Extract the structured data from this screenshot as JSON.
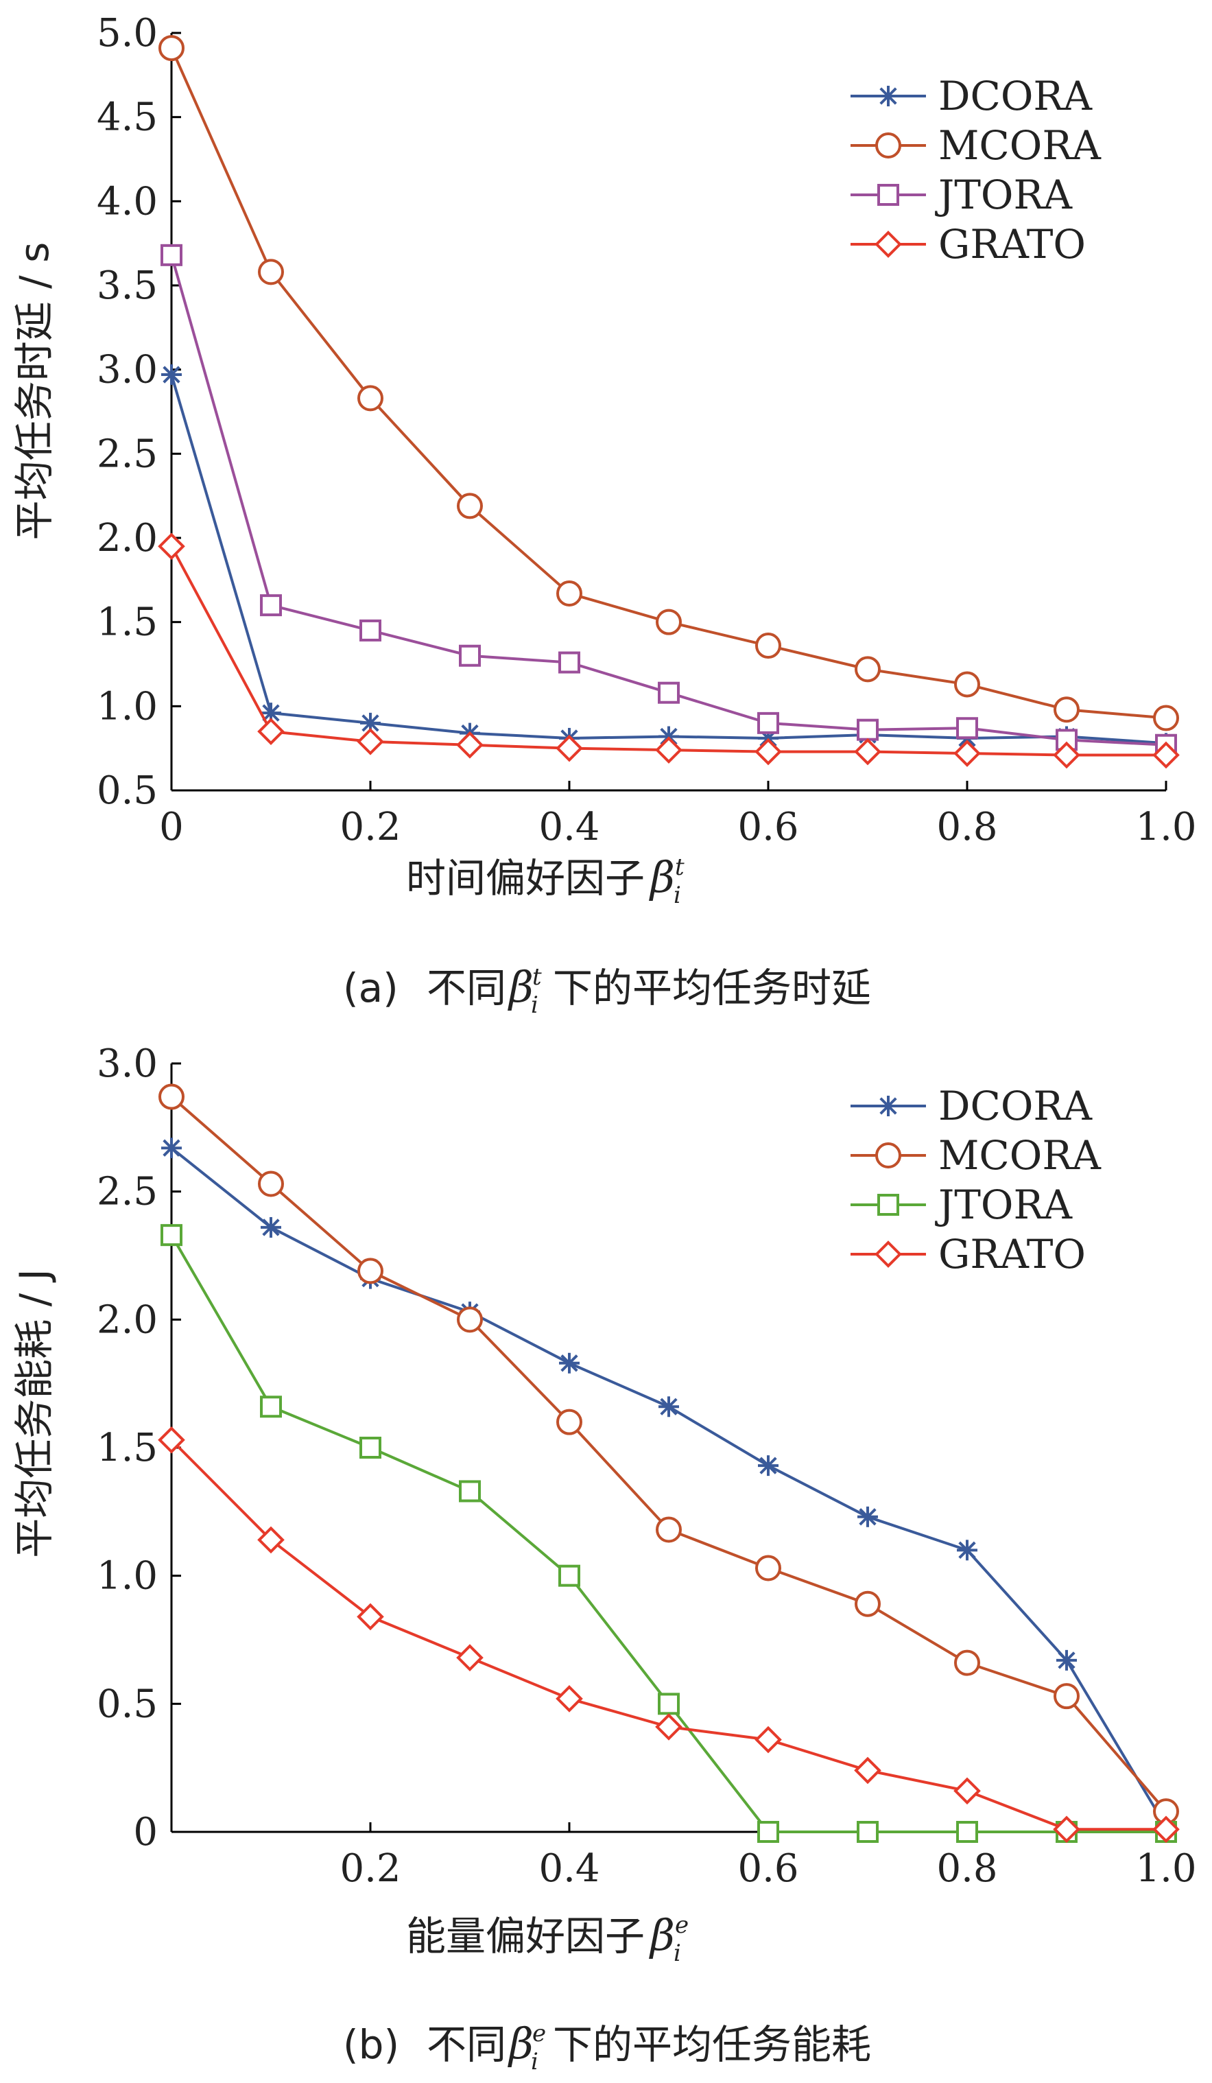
{
  "chart_data": [
    {
      "type": "line",
      "ylabel": "平均任务时延 / s",
      "xlabel": "时间偏好因子",
      "xlabel_symbol": "β",
      "xlabel_sub": "i",
      "xlabel_sup": "t",
      "caption_prefix": "(a)",
      "caption_pre": "不同",
      "caption_post": "下的平均任务时延",
      "caption_symbol": "β",
      "caption_sub": "i",
      "caption_sup": "t",
      "x": [
        0,
        0.1,
        0.2,
        0.3,
        0.4,
        0.5,
        0.6,
        0.7,
        0.8,
        0.9,
        1.0
      ],
      "xlim": [
        0,
        1.0
      ],
      "ylim": [
        0.5,
        5.0
      ],
      "xticks": [
        0,
        0.2,
        0.4,
        0.6,
        0.8,
        1.0
      ],
      "xtick_labels": [
        "0",
        "0.2",
        "0.4",
        "0.6",
        "0.8",
        "1.0"
      ],
      "yticks": [
        0.5,
        1.0,
        1.5,
        2.0,
        2.5,
        3.0,
        3.5,
        4.0,
        4.5,
        5.0
      ],
      "ytick_labels": [
        "0.5",
        "1.0",
        "1.5",
        "2.0",
        "2.5",
        "3.0",
        "3.5",
        "4.0",
        "4.5",
        "5.0"
      ],
      "legend_position": "top-right",
      "grid": false,
      "series": [
        {
          "name": "DCORA",
          "color": "#3a5a9a",
          "marker": "asterisk",
          "values": [
            2.97,
            0.96,
            0.9,
            0.84,
            0.81,
            0.82,
            0.81,
            0.83,
            0.81,
            0.82,
            0.78
          ]
        },
        {
          "name": "MCORA",
          "color": "#c0502a",
          "marker": "circle",
          "values": [
            4.91,
            3.58,
            2.83,
            2.19,
            1.67,
            1.5,
            1.36,
            1.22,
            1.13,
            0.98,
            0.93
          ]
        },
        {
          "name": "JTORA",
          "color": "#9b4f9a",
          "marker": "square",
          "values": [
            3.68,
            1.6,
            1.45,
            1.3,
            1.26,
            1.08,
            0.9,
            0.86,
            0.87,
            0.8,
            0.77
          ]
        },
        {
          "name": "GRATO",
          "color": "#e63a2a",
          "marker": "diamond",
          "values": [
            1.95,
            0.85,
            0.79,
            0.77,
            0.75,
            0.74,
            0.73,
            0.73,
            0.72,
            0.71,
            0.71
          ]
        }
      ]
    },
    {
      "type": "line",
      "ylabel": "平均任务能耗 / J",
      "xlabel": "能量偏好因子",
      "xlabel_symbol": "β",
      "xlabel_sub": "i",
      "xlabel_sup": "e",
      "caption_prefix": "(b)",
      "caption_pre": "不同",
      "caption_post": "下的平均任务能耗",
      "caption_symbol": "β",
      "caption_sub": "i",
      "caption_sup": "e",
      "x": [
        0,
        0.1,
        0.2,
        0.3,
        0.4,
        0.5,
        0.6,
        0.7,
        0.8,
        0.9,
        1.0
      ],
      "xlim": [
        0,
        1.0
      ],
      "ylim": [
        0,
        3.0
      ],
      "xticks": [
        0.2,
        0.4,
        0.6,
        0.8,
        1.0
      ],
      "xtick_labels": [
        "0.2",
        "0.4",
        "0.6",
        "0.8",
        "1.0"
      ],
      "yticks": [
        0,
        0.5,
        1.0,
        1.5,
        2.0,
        2.5,
        3.0
      ],
      "ytick_labels": [
        "0",
        "0.5",
        "1.0",
        "1.5",
        "2.0",
        "2.5",
        "3.0"
      ],
      "legend_position": "top-right",
      "grid": false,
      "series": [
        {
          "name": "DCORA",
          "color": "#3a5a9a",
          "marker": "asterisk",
          "values": [
            2.67,
            2.36,
            2.16,
            2.03,
            1.83,
            1.66,
            1.43,
            1.23,
            1.1,
            0.67,
            0.02
          ]
        },
        {
          "name": "MCORA",
          "color": "#c0502a",
          "marker": "circle",
          "values": [
            2.87,
            2.53,
            2.19,
            2.0,
            1.6,
            1.18,
            1.03,
            0.89,
            0.66,
            0.53,
            0.08
          ]
        },
        {
          "name": "JTORA",
          "color": "#5aa838",
          "marker": "square",
          "values": [
            2.33,
            1.66,
            1.5,
            1.33,
            1.0,
            0.5,
            0.0,
            0.0,
            0.0,
            0.0,
            0.0
          ]
        },
        {
          "name": "GRATO",
          "color": "#e63a2a",
          "marker": "diamond",
          "values": [
            1.53,
            1.14,
            0.84,
            0.68,
            0.52,
            0.41,
            0.36,
            0.24,
            0.16,
            0.01,
            0.01
          ]
        }
      ]
    }
  ]
}
